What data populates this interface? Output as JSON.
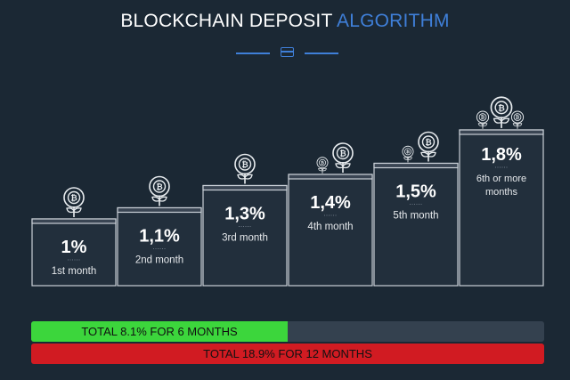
{
  "title": {
    "main": "BLOCKCHAIN DEPOSIT",
    "accent": "ALGORITHM"
  },
  "icons": {
    "divider": "credit-card-icon",
    "plant": "bitcoin-plant-icon"
  },
  "colors": {
    "background": "#1b2834",
    "accent": "#3f7fd8",
    "green": "#3cd63c",
    "red": "#d11b22",
    "step_face": "#222f3c",
    "step_top": "#3a4553"
  },
  "chart_data": {
    "type": "bar",
    "categories": [
      "1st month",
      "2nd month",
      "3rd month",
      "4th month",
      "5th month",
      "6th or more months"
    ],
    "values": [
      1.0,
      1.1,
      1.3,
      1.4,
      1.5,
      1.8
    ],
    "value_labels": [
      "1%",
      "1,1%",
      "1,3%",
      "1,4%",
      "1,5%",
      "1,8%"
    ],
    "plants_per_step": [
      1,
      1,
      1,
      2,
      2,
      3
    ],
    "unit": "%"
  },
  "totals": {
    "six": {
      "label": "TOTAL 8.1% FOR 6 MONTHS",
      "fill_fraction": 0.5
    },
    "twelve": {
      "label": "TOTAL 18.9% FOR 12 MONTHS",
      "fill_fraction": 1.0
    }
  }
}
